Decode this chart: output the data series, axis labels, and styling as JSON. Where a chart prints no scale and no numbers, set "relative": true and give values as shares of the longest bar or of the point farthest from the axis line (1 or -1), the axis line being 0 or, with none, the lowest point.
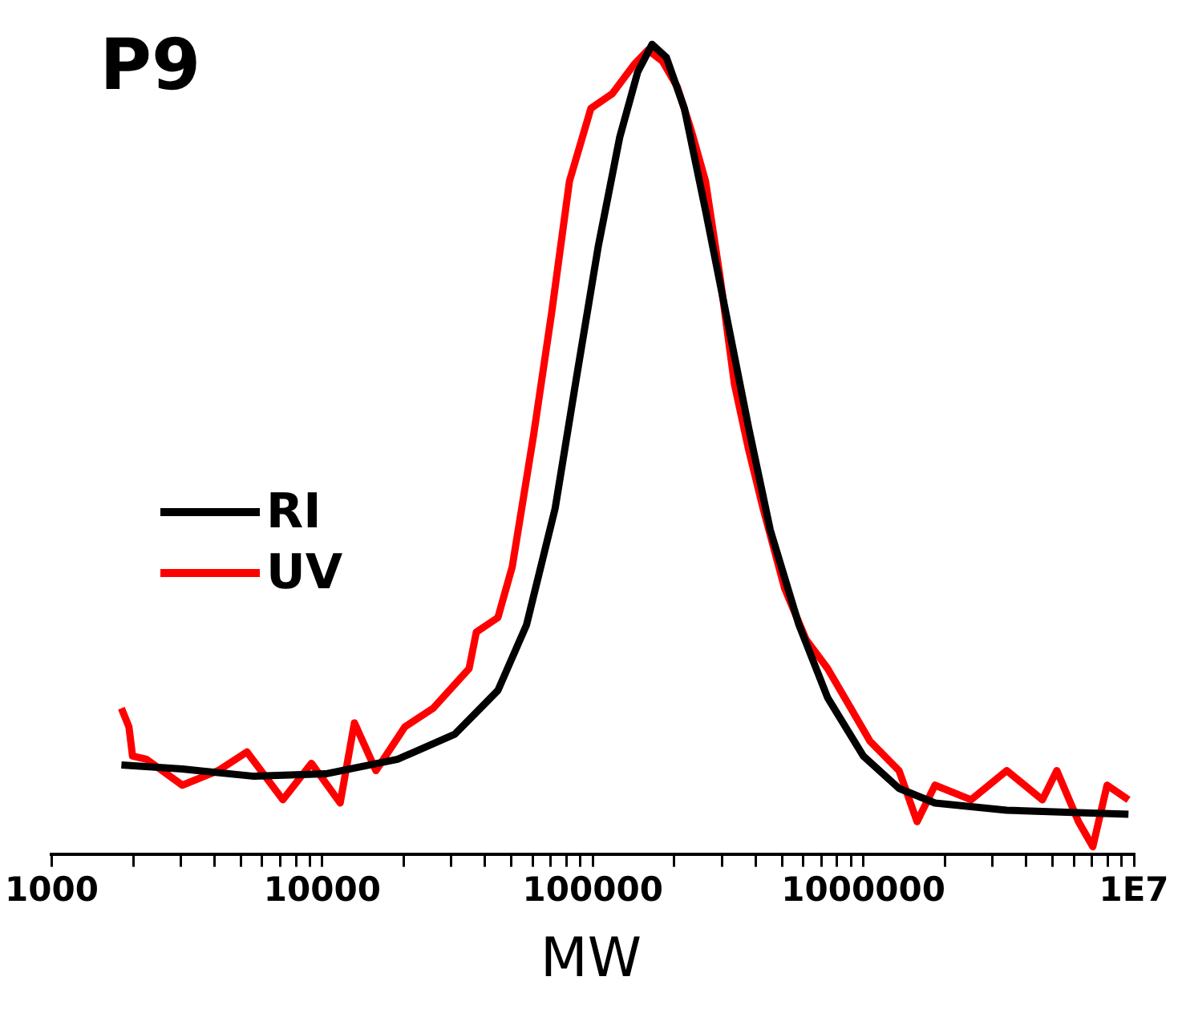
{
  "chart_data": {
    "type": "line",
    "title": "P9",
    "xlabel": "MW",
    "relative": true,
    "log": "x",
    "grid": false,
    "legend": "left",
    "marker": "none",
    "line_style": "solid",
    "xlim": [
      1000,
      10000000
    ],
    "xticks": [
      1000,
      {
        "value": 2000,
        "label": null
      },
      {
        "value": 3000,
        "label": null
      },
      {
        "value": 4000,
        "label": null
      },
      {
        "value": 5000,
        "label": null
      },
      {
        "value": 6000,
        "label": null
      },
      {
        "value": 7000,
        "label": null
      },
      {
        "value": 8000,
        "label": null
      },
      {
        "value": 9000,
        "label": null
      },
      10000,
      {
        "value": 20000,
        "label": null
      },
      {
        "value": 30000,
        "label": null
      },
      {
        "value": 40000,
        "label": null
      },
      {
        "value": 50000,
        "label": null
      },
      {
        "value": 60000,
        "label": null
      },
      {
        "value": 70000,
        "label": null
      },
      {
        "value": 80000,
        "label": null
      },
      {
        "value": 90000,
        "label": null
      },
      100000,
      {
        "value": 200000,
        "label": null
      },
      {
        "value": 300000,
        "label": null
      },
      {
        "value": 400000,
        "label": null
      },
      {
        "value": 500000,
        "label": null
      },
      {
        "value": 600000,
        "label": null
      },
      {
        "value": 700000,
        "label": null
      },
      {
        "value": 800000,
        "label": null
      },
      {
        "value": 900000,
        "label": null
      },
      1000000,
      {
        "value": 2000000,
        "label": null
      },
      {
        "value": 3000000,
        "label": null
      },
      {
        "value": 4000000,
        "label": null
      },
      {
        "value": 5000000,
        "label": null
      },
      {
        "value": 6000000,
        "label": null
      },
      {
        "value": 7000000,
        "label": null
      },
      {
        "value": 8000000,
        "label": null
      },
      {
        "value": 9000000,
        "label": null
      },
      {
        "value": 10000000,
        "label": "1E7"
      }
    ],
    "series": [
      {
        "name": "RI",
        "color": "#000000",
        "x": [
          1810,
          3040,
          5600,
          10300,
          19000,
          30900,
          44600,
          56900,
          72600,
          87100,
          104700,
          125700,
          146600,
          165600,
          187000,
          218000,
          261000,
          314000,
          377000,
          453000,
          578000,
          738000,
          1000000,
          1355000,
          1840000,
          3390000,
          6240000,
          9550000
        ],
        "values": [
          0.11,
          0.105,
          0.096,
          0.099,
          0.117,
          0.148,
          0.202,
          0.283,
          0.427,
          0.589,
          0.75,
          0.885,
          0.966,
          1.0,
          0.984,
          0.921,
          0.795,
          0.66,
          0.526,
          0.4,
          0.283,
          0.193,
          0.121,
          0.081,
          0.063,
          0.054,
          0.051,
          0.049
        ]
      },
      {
        "name": "UV",
        "color": "#ff0000",
        "x": [
          1810,
          1930,
          1990,
          2240,
          3040,
          4130,
          5270,
          7150,
          9120,
          11650,
          13150,
          15800,
          20200,
          25700,
          34900,
          37100,
          44600,
          50400,
          60400,
          70500,
          82000,
          98400,
          118000,
          142000,
          160000,
          181000,
          205000,
          231000,
          261000,
          295000,
          334000,
          377000,
          426000,
          512000,
          614000,
          738000,
          885000,
          1060000,
          1355000,
          1580000,
          1840000,
          2500000,
          3390000,
          4590000,
          5190000,
          6240000,
          7050000,
          7960000,
          9550000
        ],
        "values": [
          0.18,
          0.157,
          0.121,
          0.117,
          0.085,
          0.103,
          0.126,
          0.067,
          0.112,
          0.063,
          0.162,
          0.103,
          0.157,
          0.18,
          0.229,
          0.274,
          0.292,
          0.355,
          0.517,
          0.669,
          0.831,
          0.921,
          0.939,
          0.975,
          0.993,
          0.979,
          0.948,
          0.894,
          0.831,
          0.714,
          0.58,
          0.499,
          0.427,
          0.328,
          0.265,
          0.229,
          0.184,
          0.139,
          0.103,
          0.04,
          0.085,
          0.067,
          0.103,
          0.067,
          0.103,
          0.04,
          0.009,
          0.085,
          0.067
        ]
      }
    ]
  }
}
